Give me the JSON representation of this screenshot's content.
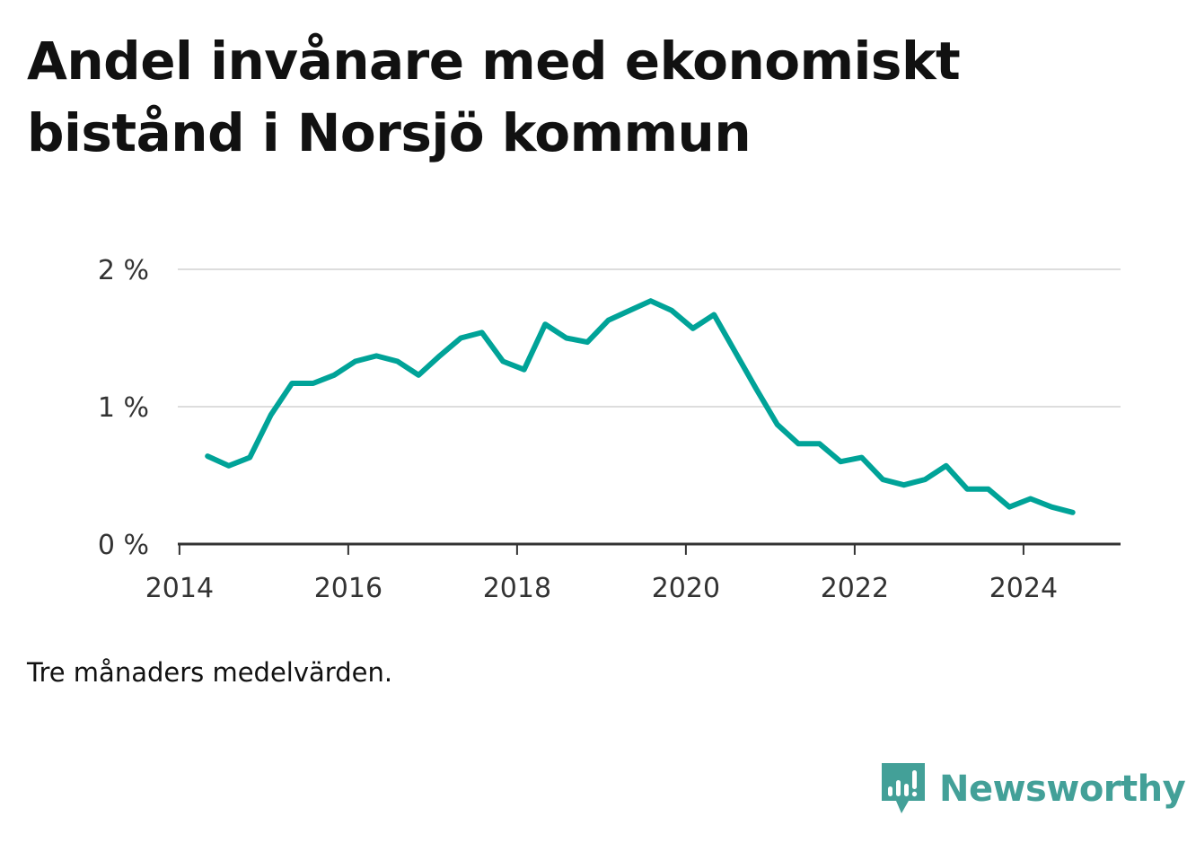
{
  "title": "Andel invånare med ekonomiskt bistånd i Norsjö kommun",
  "note": "Tre månaders medelvärden.",
  "brand": {
    "name": "Newsworthy",
    "icon": "newsworthy-logo-icon",
    "color": "#43a098"
  },
  "chart_data": {
    "type": "line",
    "title": "Andel invånare med ekonomiskt bistånd i Norsjö kommun",
    "xlabel": "",
    "ylabel": "",
    "x_ticks": [
      "2014",
      "2016",
      "2018",
      "2020",
      "2022",
      "2024"
    ],
    "y_ticks": [
      "0 %",
      "1 %",
      "2 %"
    ],
    "xlim": [
      2013.98,
      2025.15
    ],
    "ylim": [
      0,
      2.0
    ],
    "grid": true,
    "line_color": "#00a398",
    "series": [
      {
        "x": [
          "2014-05",
          "2014-08",
          "2014-11",
          "2015-02",
          "2015-05",
          "2015-08",
          "2015-11",
          "2016-02",
          "2016-05",
          "2016-08",
          "2016-11",
          "2017-02",
          "2017-05",
          "2017-08",
          "2017-11",
          "2018-02",
          "2018-05",
          "2018-08",
          "2018-11",
          "2019-02",
          "2019-05",
          "2019-08",
          "2019-11",
          "2020-02",
          "2020-05",
          "2020-08",
          "2020-11",
          "2021-02",
          "2021-05",
          "2021-08",
          "2021-11",
          "2022-02",
          "2022-05",
          "2022-08",
          "2022-11",
          "2023-02",
          "2023-05",
          "2023-08",
          "2023-11",
          "2024-02",
          "2024-05",
          "2024-08"
        ],
        "values": [
          0.64,
          0.57,
          0.63,
          0.94,
          1.17,
          1.17,
          1.23,
          1.33,
          1.37,
          1.33,
          1.23,
          1.37,
          1.5,
          1.54,
          1.33,
          1.27,
          1.6,
          1.5,
          1.47,
          1.63,
          1.7,
          1.77,
          1.7,
          1.57,
          1.67,
          1.4,
          1.13,
          0.87,
          0.73,
          0.73,
          0.6,
          0.63,
          0.47,
          0.43,
          0.47,
          0.57,
          0.4,
          0.4,
          0.27,
          0.33,
          0.27,
          0.23
        ]
      }
    ]
  }
}
